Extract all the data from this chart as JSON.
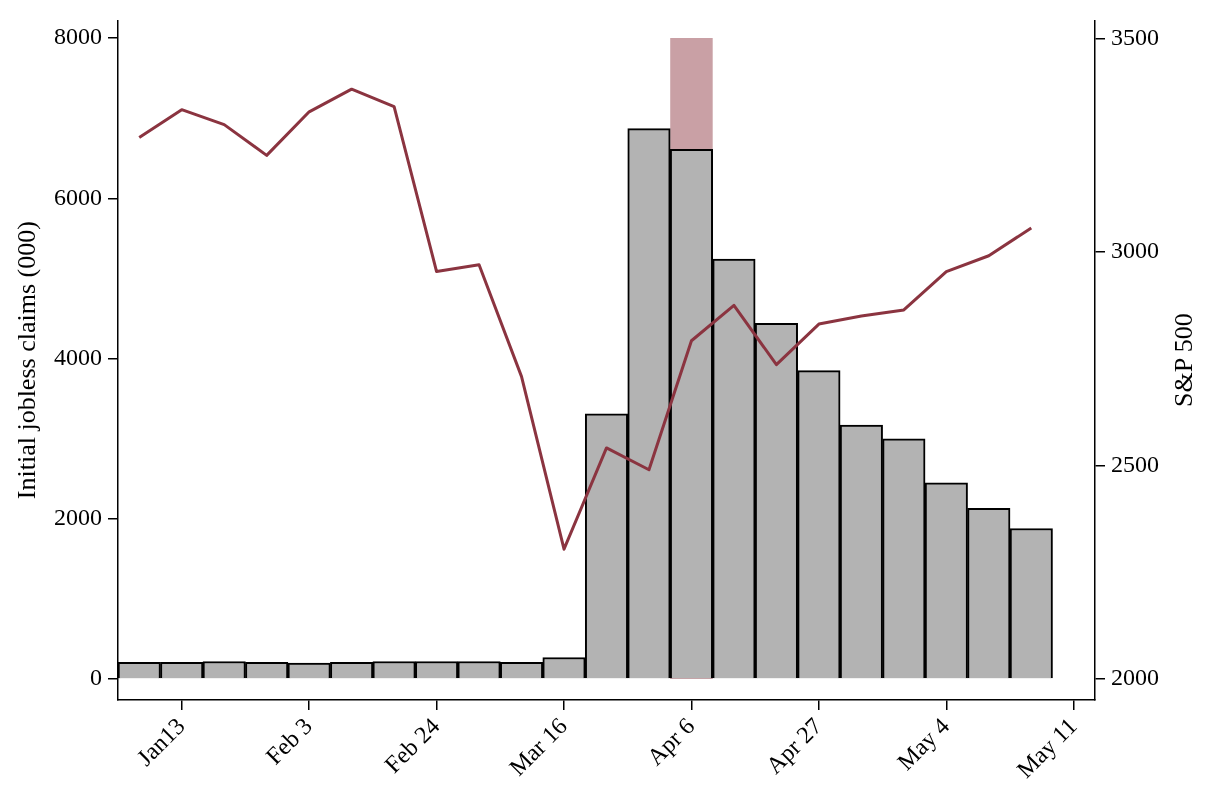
{
  "chart_data": {
    "type": "bar",
    "ylabel": "Initial jobless claims (000)",
    "y2label": "S&P 500",
    "categories": [
      null,
      "Jan13",
      null,
      null,
      "Feb 3",
      null,
      null,
      "Feb 24",
      null,
      null,
      "Mar 16",
      null,
      null,
      "Apr 6",
      null,
      null,
      "Apr 27",
      null,
      null,
      "May 4",
      null,
      null,
      "May 11"
    ],
    "series": [
      {
        "color": "#b3b3b3",
        "values": [
          210,
          210,
          220,
          210,
          200,
          210,
          220,
          220,
          220,
          210,
          270,
          3310,
          6870,
          6610,
          5240,
          4440,
          3850,
          3170,
          3000,
          2450,
          2130,
          1880,
          null
        ]
      },
      {
        "type": "line",
        "axis": "y2",
        "color": "#8b3440",
        "values": [
          3268,
          3333,
          3298,
          3226,
          3328,
          3381,
          3340,
          2954,
          2970,
          2708,
          2304,
          2541,
          2490,
          2792,
          2875,
          2736,
          2831,
          2850,
          2864,
          2954,
          2991,
          3056,
          null
        ]
      }
    ],
    "ylim": [
      -260,
      8220
    ],
    "yticks": [
      0,
      2000,
      4000,
      6000,
      8000
    ],
    "y2lim": [
      1951,
      3542
    ],
    "y2ticks": [
      2000,
      2500,
      3000,
      3500
    ],
    "bands": [
      {
        "axis": "x",
        "from": "Apr 6",
        "to": "Apr 6",
        "color": "#c9a0a5"
      }
    ],
    "marker": "none",
    "legend": false
  }
}
